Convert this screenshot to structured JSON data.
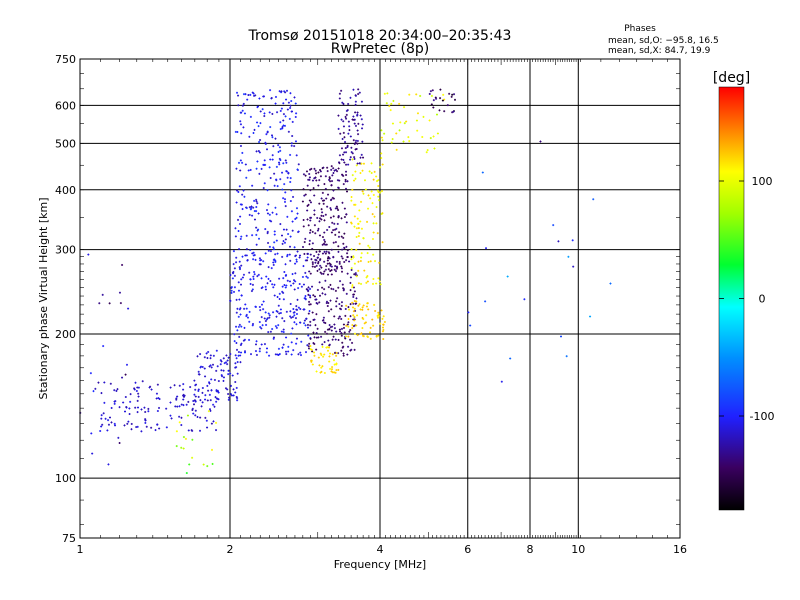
{
  "chart_data": {
    "type": "scatter",
    "title": "Tromsø 20151018 20:34:00–20:35:43",
    "subtitle": "RwPretec (8p)",
    "xlabel": "Frequency [MHz]",
    "ylabel": "Stationary phase Virtual Height [km]",
    "x_scale": "log",
    "y_scale": "log",
    "xlim": [
      1,
      16
    ],
    "ylim": [
      75,
      750
    ],
    "x_ticks": [
      1,
      2,
      4,
      6,
      8,
      10,
      16
    ],
    "x_tick_labels": [
      "1",
      "2",
      "4",
      "6",
      "8",
      "10",
      "16"
    ],
    "y_ticks": [
      75,
      100,
      200,
      300,
      400,
      500,
      600,
      750
    ],
    "y_tick_labels": [
      "75",
      "100",
      "200",
      "300",
      "400",
      "500",
      "600",
      "750"
    ],
    "grid": true,
    "phases_box": {
      "title": "Phases",
      "line1": "mean, sd,O: −95.8, 16.5",
      "line2": "mean, sd,X:  84.7, 19.9"
    },
    "colorbar": {
      "label": "[deg]",
      "range": [
        -180,
        180
      ],
      "ticks": [
        100,
        0,
        -100
      ],
      "tick_labels": [
        "100",
        "0",
        "-100"
      ]
    },
    "clusters": [
      {
        "x_range": [
          1.0,
          1.25
        ],
        "y_range": [
          95,
          340
        ],
        "count": 25,
        "phase": -120,
        "phase_sd": 30
      },
      {
        "x_range": [
          1.1,
          1.9
        ],
        "y_range": [
          125,
          160
        ],
        "count": 150,
        "phase": -115,
        "phase_sd": 10
      },
      {
        "x_range": [
          1.7,
          2.1
        ],
        "y_range": [
          145,
          185
        ],
        "count": 90,
        "phase": -112,
        "phase_sd": 8
      },
      {
        "x_range": [
          1.55,
          1.9
        ],
        "y_range": [
          100,
          140
        ],
        "count": 18,
        "phase": 75,
        "phase_sd": 40
      },
      {
        "x_range": [
          2.0,
          2.9
        ],
        "y_range": [
          180,
          300
        ],
        "count": 300,
        "phase": -105,
        "phase_sd": 12
      },
      {
        "x_range": [
          2.05,
          2.75
        ],
        "y_range": [
          300,
          650
        ],
        "count": 260,
        "phase": -105,
        "phase_sd": 15
      },
      {
        "x_range": [
          2.8,
          3.45
        ],
        "y_range": [
          270,
          450
        ],
        "count": 220,
        "phase": -140,
        "phase_sd": 10
      },
      {
        "x_range": [
          2.85,
          3.6
        ],
        "y_range": [
          180,
          290
        ],
        "count": 200,
        "phase": -140,
        "phase_sd": 10
      },
      {
        "x_range": [
          3.3,
          3.7
        ],
        "y_range": [
          450,
          650
        ],
        "count": 90,
        "phase": -130,
        "phase_sd": 12
      },
      {
        "x_range": [
          3.5,
          4.05
        ],
        "y_range": [
          250,
          470
        ],
        "count": 110,
        "phase": 110,
        "phase_sd": 15
      },
      {
        "x_range": [
          3.4,
          4.1
        ],
        "y_range": [
          195,
          235
        ],
        "count": 70,
        "phase": 120,
        "phase_sd": 10
      },
      {
        "x_range": [
          2.9,
          3.3
        ],
        "y_range": [
          165,
          190
        ],
        "count": 45,
        "phase": 115,
        "phase_sd": 10
      },
      {
        "x_range": [
          4.0,
          5.4
        ],
        "y_range": [
          470,
          640
        ],
        "count": 45,
        "phase": 100,
        "phase_sd": 20
      },
      {
        "x_range": [
          5.0,
          5.7
        ],
        "y_range": [
          580,
          650
        ],
        "count": 22,
        "phase": -150,
        "phase_sd": 20
      },
      {
        "x_range": [
          6.0,
          12.0
        ],
        "y_range": [
          150,
          620
        ],
        "count": 20,
        "phase": -90,
        "phase_sd": 50
      }
    ]
  }
}
